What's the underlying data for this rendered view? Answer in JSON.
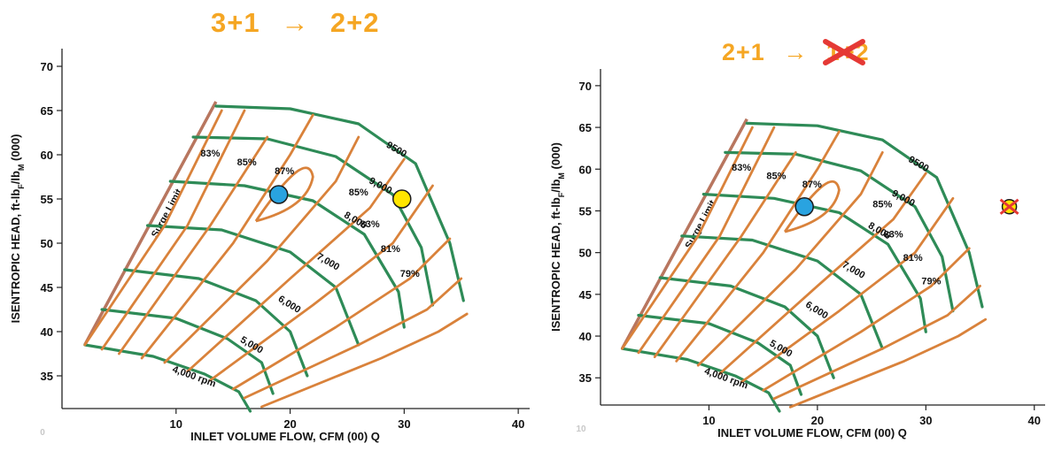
{
  "colors": {
    "title": "#F5A623",
    "speed_line": "#2E8B57",
    "efficiency_line": "#D9823B",
    "surge_line": "#B8765F",
    "operating_point_blue": "#29A3E0",
    "operating_point_yellow": "#FFE600",
    "cross_mark": "#E53935"
  },
  "chart_data": [
    {
      "type": "line",
      "title_left": "3+1",
      "title_arrow": "→",
      "title_right": "2+2",
      "title_right_crossed": false,
      "xlabel": "INLET VOLUME FLOW, CFM (00) Q",
      "ylabel_main": "ISENTROPIC HEAD, ft-lb",
      "ylabel_sub1": "F",
      "ylabel_mid": "/lb",
      "ylabel_sub2": "M",
      "ylabel_tail": " (000)",
      "origin_label": "0",
      "xticks": [
        10,
        20,
        30,
        40
      ],
      "yticks": [
        35,
        40,
        45,
        50,
        55,
        60,
        65,
        70
      ],
      "xlim": [
        0,
        41
      ],
      "ylim": [
        31,
        72
      ],
      "surge_limit_label": "Surge Limit",
      "speed_labels": [
        "4,000 rpm",
        "5,000",
        "6,000",
        "7,000",
        "8,000",
        "9,000",
        "9500"
      ],
      "efficiency_labels": [
        "83%",
        "85%",
        "87%",
        "85%",
        "83%",
        "81%",
        "79%"
      ],
      "operating_points": [
        {
          "name": "current",
          "x": 19,
          "y": 55.5,
          "color": "blue",
          "crossed": false
        },
        {
          "name": "target",
          "x": 29.8,
          "y": 55.0,
          "color": "yellow",
          "crossed": false
        }
      ]
    },
    {
      "type": "line",
      "title_left": "2+1",
      "title_arrow": "→",
      "title_right": "1+2",
      "title_right_crossed": true,
      "xlabel": "INLET VOLUME FLOW, CFM (00) Q",
      "ylabel_main": "ISENTROPIC HEAD, ft-lb",
      "ylabel_sub1": "F",
      "ylabel_mid": "/lb",
      "ylabel_sub2": "M",
      "ylabel_tail": " (000)",
      "origin_label": "10",
      "xticks": [
        10,
        20,
        30,
        40
      ],
      "yticks": [
        35,
        40,
        45,
        50,
        55,
        60,
        65,
        70
      ],
      "xlim": [
        0,
        41
      ],
      "ylim": [
        31,
        72
      ],
      "surge_limit_label": "Surge Limit",
      "speed_labels": [
        "4,000 rpm",
        "5,000",
        "6,000",
        "7,000",
        "8,000",
        "9,000",
        "9500"
      ],
      "efficiency_labels": [
        "83%",
        "85%",
        "87%",
        "85%",
        "83%",
        "81%",
        "79%"
      ],
      "operating_points": [
        {
          "name": "current",
          "x": 18.8,
          "y": 55.5,
          "color": "blue",
          "crossed": false
        },
        {
          "name": "target",
          "x": 37.7,
          "y": 55.5,
          "color": "yellow",
          "crossed": true
        }
      ]
    }
  ]
}
